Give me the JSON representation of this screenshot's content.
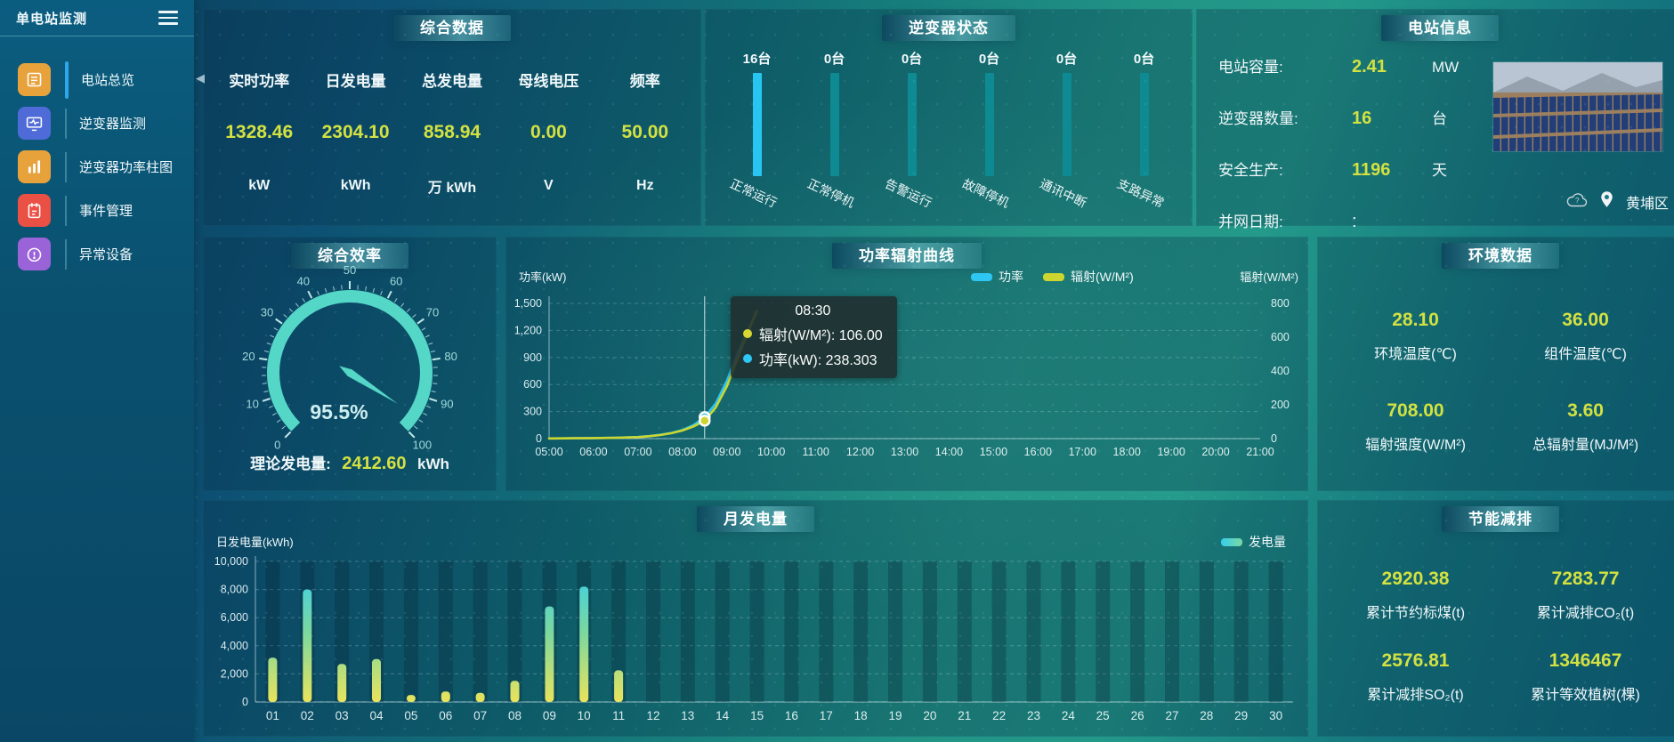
{
  "sidebar": {
    "title": "单电站监测",
    "items": [
      {
        "label": "电站总览",
        "icon": "report-icon",
        "color": "#e8a23c",
        "active": true
      },
      {
        "label": "逆变器监测",
        "icon": "monitor-icon",
        "color": "#4f6bd8",
        "active": false
      },
      {
        "label": "逆变器功率柱图",
        "icon": "bar-chart-icon",
        "color": "#e8a23c",
        "active": false
      },
      {
        "label": "事件管理",
        "icon": "notebook-icon",
        "color": "#ea5044",
        "active": false
      },
      {
        "label": "异常设备",
        "icon": "device-alert-icon",
        "color": "#9a63d8",
        "active": false
      }
    ]
  },
  "summary": {
    "title": "综合数据",
    "metrics": [
      {
        "label": "实时功率",
        "value": "1328.46",
        "unit": "kW"
      },
      {
        "label": "日发电量",
        "value": "2304.10",
        "unit": "kWh"
      },
      {
        "label": "总发电量",
        "value": "858.94",
        "unit": "万 kWh"
      },
      {
        "label": "母线电压",
        "value": "0.00",
        "unit": "V"
      },
      {
        "label": "频率",
        "value": "50.00",
        "unit": "Hz"
      }
    ]
  },
  "inverter_status": {
    "title": "逆变器状态"
  },
  "station_info": {
    "title": "电站信息",
    "rows": [
      {
        "label": "电站容量:",
        "value": "2.41",
        "unit": "MW"
      },
      {
        "label": "逆变器数量:",
        "value": "16",
        "unit": "台"
      },
      {
        "label": "安全生产:",
        "value": "1196",
        "unit": "天"
      },
      {
        "label": "并网日期:",
        "value": ":",
        "unit": ""
      }
    ],
    "location": "黄埔区"
  },
  "efficiency": {
    "title": "综合效率",
    "footer_label": "理论发电量:",
    "footer_value": "2412.60",
    "footer_unit": "kWh"
  },
  "environment": {
    "title": "环境数据",
    "cells": [
      {
        "value": "28.10",
        "label": "环境温度(℃)"
      },
      {
        "value": "36.00",
        "label": "组件温度(℃)"
      },
      {
        "value": "708.00",
        "label": "辐射强度(W/M²)"
      },
      {
        "value": "3.60",
        "label": "总辐射量(MJ/M²)"
      }
    ]
  },
  "saving": {
    "title": "节能减排",
    "cells": [
      {
        "value": "2920.38",
        "label": "累计节约标煤(t)"
      },
      {
        "value": "7283.77",
        "label": "累计减排CO₂(t)"
      },
      {
        "value": "2576.81",
        "label": "累计减排SO₂(t)"
      },
      {
        "value": "1346467",
        "label": "累计等效植树(棵)"
      }
    ]
  },
  "chart_data": [
    {
      "id": "power_radiation",
      "type": "line",
      "title": "功率辐射曲线",
      "ylabel_left": "功率(kW)",
      "ylabel_right": "辐射(W/M²)",
      "ylim_left": [
        0,
        1500
      ],
      "yticks_left": [
        0,
        300,
        600,
        900,
        1200,
        1500
      ],
      "ylim_right": [
        0,
        800
      ],
      "yticks_right": [
        0,
        200,
        400,
        600,
        800
      ],
      "x_range": [
        5,
        21
      ],
      "x_ticks": [
        "05:00",
        "06:00",
        "07:00",
        "08:00",
        "09:00",
        "10:00",
        "11:00",
        "12:00",
        "13:00",
        "14:00",
        "15:00",
        "16:00",
        "17:00",
        "18:00",
        "19:00",
        "20:00",
        "21:00"
      ],
      "grid": true,
      "legend_position": "top",
      "pointer_x": 8.5,
      "series": [
        {
          "name": "功率",
          "color": "#2ec6f2",
          "axis": "left",
          "x": [
            5,
            5.5,
            6,
            6.5,
            7,
            7.25,
            7.5,
            7.75,
            8,
            8.25,
            8.5,
            8.75,
            9,
            9.25,
            9.5,
            9.67
          ],
          "y": [
            2,
            4,
            6,
            10,
            18,
            28,
            42,
            62,
            95,
            150,
            238.3,
            390,
            640,
            960,
            1230,
            1400
          ]
        },
        {
          "name": "辐射(W/M²)",
          "color": "#ccd62f",
          "axis": "right",
          "x": [
            5,
            5.5,
            6,
            6.5,
            7,
            7.25,
            7.5,
            7.75,
            8,
            8.25,
            8.5,
            8.75,
            9,
            9.25,
            9.5,
            9.67
          ],
          "y": [
            1,
            2,
            3,
            5,
            9,
            14,
            21,
            32,
            48,
            72,
            106,
            185,
            310,
            480,
            645,
            755
          ]
        }
      ],
      "tooltip": {
        "time": "08:30",
        "rows": [
          {
            "color": "#d8d832",
            "text": "辐射(W/M²): 106.00"
          },
          {
            "color": "#2ec6f2",
            "text": "功率(kW): 238.303"
          }
        ]
      }
    },
    {
      "id": "monthly_generation",
      "type": "bar",
      "title": "月发电量",
      "ylabel": "日发电量(kWh)",
      "ylim": [
        0,
        10000
      ],
      "yticks": [
        0,
        2000,
        4000,
        6000,
        8000,
        10000
      ],
      "grid": true,
      "legend": "发电量",
      "legend_position": "top-right",
      "categories": [
        "01",
        "02",
        "03",
        "04",
        "05",
        "06",
        "07",
        "08",
        "09",
        "10",
        "11",
        "12",
        "13",
        "14",
        "15",
        "16",
        "17",
        "18",
        "19",
        "20",
        "21",
        "22",
        "23",
        "24",
        "25",
        "26",
        "27",
        "28",
        "29",
        "30"
      ],
      "values": [
        3150,
        8000,
        2700,
        3050,
        500,
        750,
        650,
        1500,
        6800,
        8200,
        2250,
        0,
        0,
        0,
        0,
        0,
        0,
        0,
        0,
        0,
        0,
        0,
        0,
        0,
        0,
        0,
        0,
        0,
        0,
        0
      ],
      "bar_gradient": [
        "#e9e35c",
        "#7ad8a0",
        "#35cdf0"
      ]
    },
    {
      "id": "efficiency_gauge",
      "type": "gauge",
      "min": 0,
      "max": 100,
      "value": 95.5,
      "label": "95.5%",
      "tick_step": 10,
      "color": "#55d7c7"
    },
    {
      "id": "inverter_bars",
      "type": "bar",
      "categories": [
        "正常运行",
        "正常停机",
        "告警运行",
        "故障停机",
        "通讯中断",
        "支路异常"
      ],
      "counts": [
        "16台",
        "0台",
        "0台",
        "0台",
        "0台",
        "0台"
      ],
      "values": [
        16,
        0,
        0,
        0,
        0,
        0
      ],
      "bar_colors": [
        "#29c5f2",
        "#0e8a93",
        "#0e8a93",
        "#0e8a93",
        "#0e8a93",
        "#0e8a93"
      ]
    }
  ]
}
